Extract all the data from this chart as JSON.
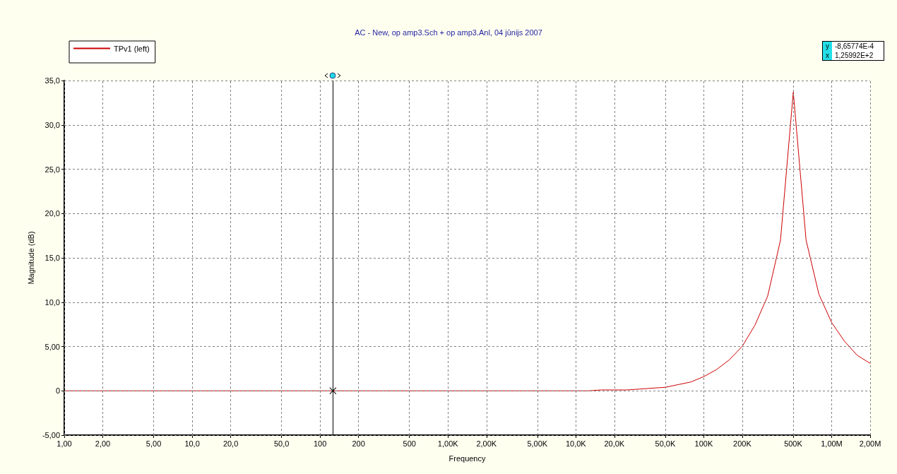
{
  "chart_data": {
    "type": "line",
    "title": "AC - New, op amp3.Sch + op amp3.Anl, 04 jūnijs 2007",
    "xlabel": "Frequency",
    "ylabel": "Magnitude (dB)",
    "log": "x",
    "xlim": [
      1,
      2000000
    ],
    "ylim": [
      -5,
      35
    ],
    "xticks": [
      {
        "value": 1,
        "label": "1,00"
      },
      {
        "value": 2,
        "label": "2,00"
      },
      {
        "value": 5,
        "label": "5,00"
      },
      {
        "value": 10,
        "label": "10,0"
      },
      {
        "value": 20,
        "label": "20,0"
      },
      {
        "value": 50,
        "label": "50,0"
      },
      100,
      200,
      500,
      {
        "value": 1000,
        "label": "1,00K"
      },
      {
        "value": 2000,
        "label": "2,00K"
      },
      {
        "value": 5000,
        "label": "5,00K"
      },
      {
        "value": 10000,
        "label": "10,0K"
      },
      {
        "value": 20000,
        "label": "20,0K"
      },
      {
        "value": 50000,
        "label": "50,0K"
      },
      {
        "value": 100000,
        "label": "100K"
      },
      {
        "value": 200000,
        "label": "200K"
      },
      {
        "value": 500000,
        "label": "500K"
      },
      {
        "value": 1000000,
        "label": "1,00M"
      },
      {
        "value": 2000000,
        "label": "2,00M"
      }
    ],
    "yticks": [
      {
        "value": -5,
        "label": "-5,00"
      },
      0,
      {
        "value": 5,
        "label": "5,00"
      },
      {
        "value": 10,
        "label": "10,0"
      },
      {
        "value": 15,
        "label": "15,0"
      },
      {
        "value": 20,
        "label": "20,0"
      },
      {
        "value": 25,
        "label": "25,0"
      },
      {
        "value": 30,
        "label": "30,0"
      },
      {
        "value": 35,
        "label": "35,0"
      }
    ],
    "grid": true,
    "legend": "top left",
    "marker": "none",
    "line_style": "solid",
    "annotations": [
      "y",
      "-8,65774E-4",
      "x",
      "1,25992E+2"
    ],
    "ref_lines": [
      {
        "axis": "x",
        "value": 125.992,
        "color": "#000000"
      }
    ],
    "series": [
      {
        "name": "TPv1 (left)",
        "color": "#cc0000",
        "x": [
          1,
          10,
          100,
          1000,
          10000,
          12600,
          15800,
          20000,
          25100,
          31600,
          39800,
          50100,
          63100,
          79400,
          100000,
          125900,
          158500,
          199500,
          251200,
          316200,
          398100,
          501200,
          631000,
          794300,
          1000000,
          1259000,
          1585000,
          2000000
        ],
        "values": [
          0,
          0,
          0,
          0,
          0,
          0.0,
          0.1,
          0.1,
          0.1,
          0.2,
          0.3,
          0.4,
          0.7,
          1.0,
          1.6,
          2.4,
          3.5,
          5.0,
          7.4,
          10.7,
          17.0,
          33.7,
          17.0,
          10.9,
          7.7,
          5.6,
          4.0,
          3.1
        ]
      },
      {
        "type": "scatter",
        "marker": "cross",
        "color": "#000000",
        "x": [
          125.992
        ],
        "values": [
          -0.000865774
        ]
      }
    ]
  }
}
